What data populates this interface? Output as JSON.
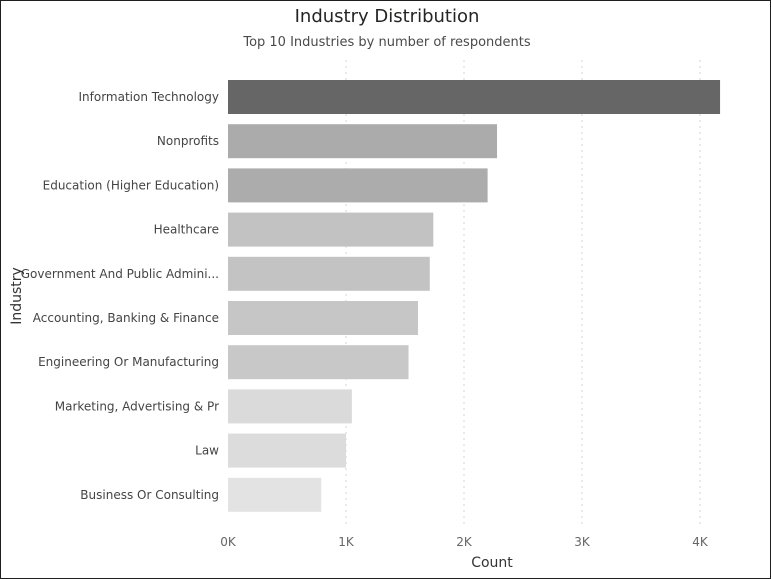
{
  "chart_data": {
    "type": "bar",
    "orientation": "horizontal",
    "title": "Industry Distribution",
    "subtitle": "Top 10 Industries by number of respondents",
    "xlabel": "Count",
    "ylabel": "Industry",
    "xlim": [
      0,
      4300
    ],
    "x_ticks": [
      0,
      1000,
      2000,
      3000,
      4000
    ],
    "x_tick_labels": [
      "0K",
      "1K",
      "2K",
      "3K",
      "4K"
    ],
    "grid": true,
    "categories": [
      "Information Technology",
      "Nonprofits",
      "Education (Higher Education)",
      "Healthcare",
      "Government And Public Admini...",
      "Accounting, Banking & Finance",
      "Engineering Or Manufacturing",
      "Marketing, Advertising & Pr",
      "Law",
      "Business Or Consulting"
    ],
    "values": [
      4170,
      2280,
      2200,
      1740,
      1710,
      1610,
      1530,
      1050,
      1000,
      790
    ],
    "colors": [
      "#666666",
      "#ababab",
      "#acacac",
      "#c2c2c2",
      "#c3c3c3",
      "#c6c6c6",
      "#c8c8c8",
      "#dadada",
      "#dcdcdc",
      "#e3e3e3"
    ]
  }
}
